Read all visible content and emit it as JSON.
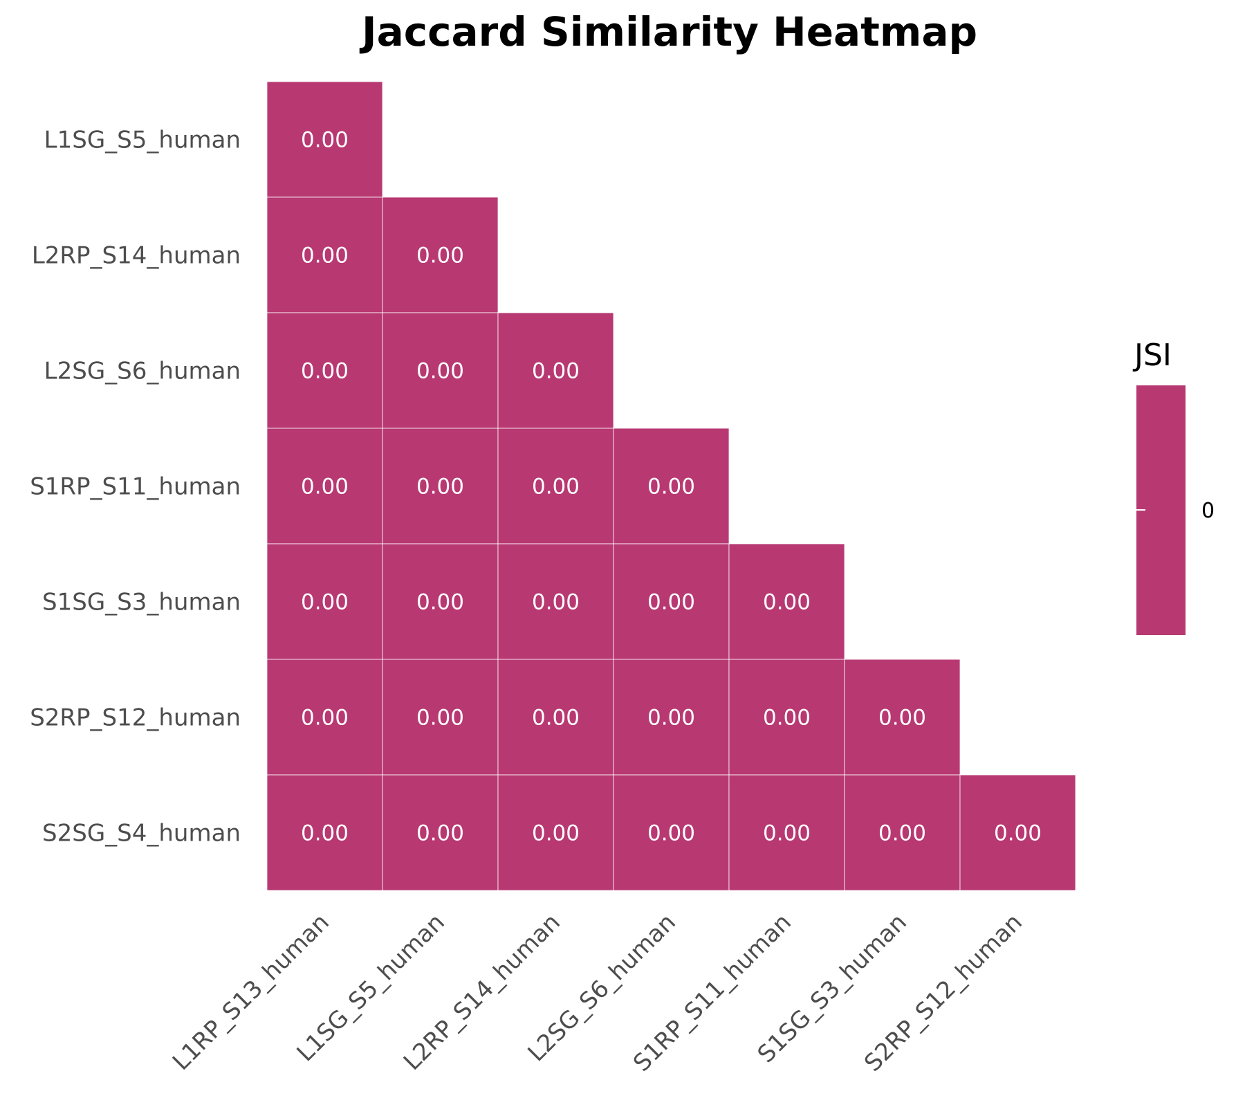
{
  "chart_data": {
    "type": "heatmap",
    "title": "Jaccard Similarity Heatmap",
    "row_labels": [
      "L1SG_S5_human",
      "L2RP_S14_human",
      "L2SG_S6_human",
      "S1RP_S11_human",
      "S1SG_S3_human",
      "S2RP_S12_human",
      "S2SG_S4_human"
    ],
    "col_labels": [
      "L1RP_S13_human",
      "L1SG_S5_human",
      "L2RP_S14_human",
      "L2SG_S6_human",
      "S1RP_S11_human",
      "S1SG_S3_human",
      "S2RP_S12_human"
    ],
    "values": [
      [
        0.0
      ],
      [
        0.0,
        0.0
      ],
      [
        0.0,
        0.0,
        0.0
      ],
      [
        0.0,
        0.0,
        0.0,
        0.0
      ],
      [
        0.0,
        0.0,
        0.0,
        0.0,
        0.0
      ],
      [
        0.0,
        0.0,
        0.0,
        0.0,
        0.0,
        0.0
      ],
      [
        0.0,
        0.0,
        0.0,
        0.0,
        0.0,
        0.0,
        0.0
      ]
    ],
    "value_format": "0.00",
    "mask": "lower-triangle",
    "colorbar": {
      "title": "JSI",
      "ticks": [
        0
      ],
      "tick_labels": [
        "0"
      ]
    },
    "colors": {
      "cell": "#b83872",
      "cell_text": "#ffffff",
      "grid_line": "#ffffff"
    }
  }
}
